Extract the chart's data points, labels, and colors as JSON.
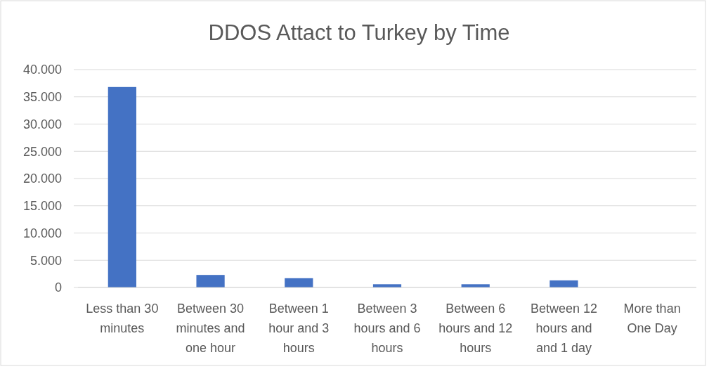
{
  "chart_data": {
    "type": "bar",
    "title": "DDOS Attact to Turkey by Time",
    "categories": [
      "Less than 30 minutes",
      "Between 30 minutes and one hour",
      "Between 1 hour and 3 hours",
      "Between 3 hours and 6 hours",
      "Between 6 hours and 12 hours",
      "Between 12 hours and and 1 day",
      "More than One Day"
    ],
    "values": [
      36800,
      2300,
      1700,
      600,
      600,
      1300,
      0
    ],
    "color": "#4472c4",
    "ylim": [
      0,
      40000
    ],
    "yticks": [
      0,
      {
        "value": 5000,
        "label": "5.000"
      },
      {
        "value": 10000,
        "label": "10.000"
      },
      {
        "value": 15000,
        "label": "15.000"
      },
      {
        "value": 20000,
        "label": "20.000"
      },
      {
        "value": 25000,
        "label": "25.000"
      },
      {
        "value": 30000,
        "label": "30.000"
      },
      {
        "value": 35000,
        "label": "35.000"
      },
      {
        "value": 40000,
        "label": "40.000"
      }
    ],
    "grid": "y"
  }
}
